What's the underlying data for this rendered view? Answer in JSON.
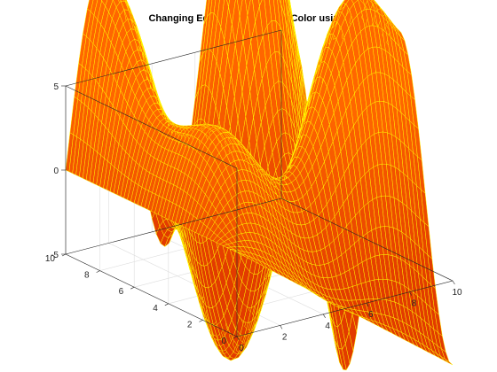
{
  "chart_data": {
    "type": "surface",
    "title": "Changing EdgeColor and FaceColor using surf",
    "xlabel": "",
    "ylabel": "",
    "zlabel": "",
    "function": "z = y*sin(x) - x*cos(y)",
    "x_range": [
      0,
      10
    ],
    "y_range": [
      0,
      10
    ],
    "z_range": [
      -5,
      5
    ],
    "x_ticks": [
      "0",
      "2",
      "4",
      "6",
      "8",
      "10"
    ],
    "y_ticks": [
      "0",
      "2",
      "4",
      "6",
      "8",
      "10"
    ],
    "z_ticks": [
      "-5",
      "0",
      "5"
    ],
    "x_tick_values": [
      0,
      2,
      4,
      6,
      8,
      10
    ],
    "y_tick_values": [
      0,
      2,
      4,
      6,
      8,
      10
    ],
    "z_tick_values": [
      -5,
      0,
      5
    ],
    "face_color": "#ff6600",
    "face_color_dark": "#e23b00",
    "edge_color": "#ffff00",
    "grid": true
  }
}
